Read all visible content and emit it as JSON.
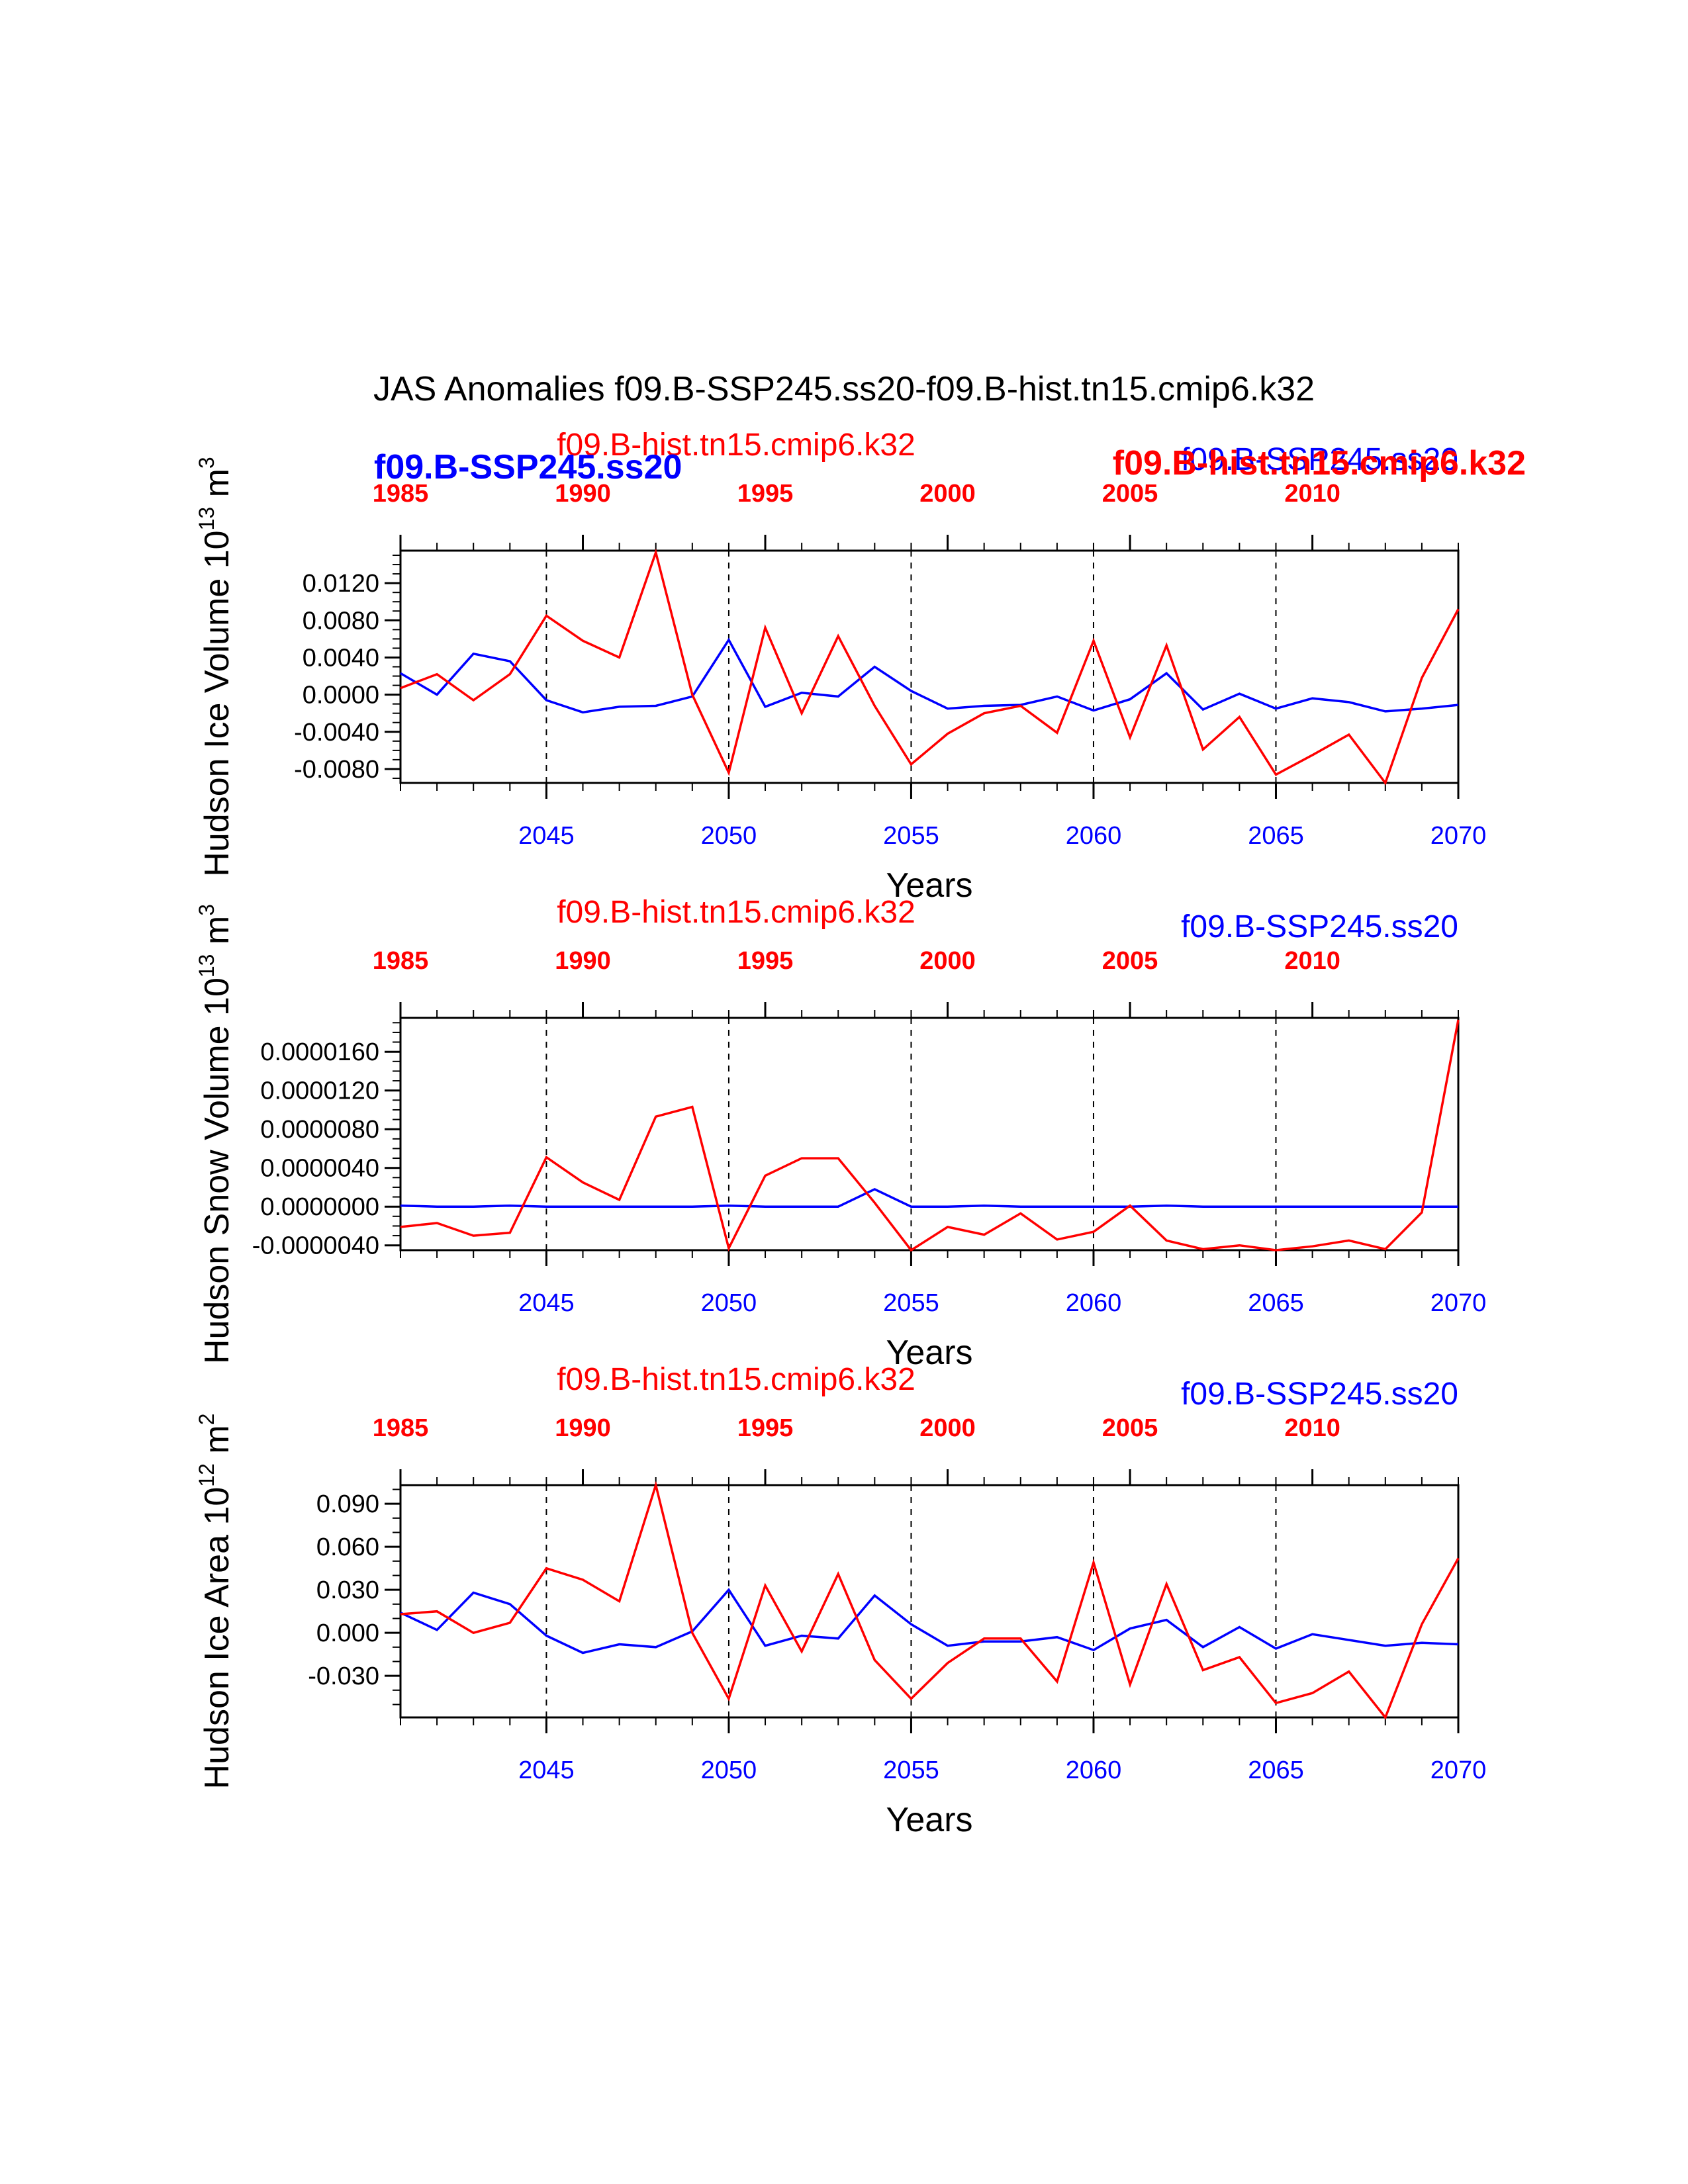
{
  "main_title": "JAS Anomalies f09.B-SSP245.ss20-f09.B-hist.tn15.cmip6.k32",
  "colors": {
    "ssp": "#0000ff",
    "hist": "#ff0000",
    "axis": "#000000"
  },
  "overlap_labels": {
    "hist_bold": "f09.B-hist.tn15.cmip6.k32",
    "ssp_bold": "f09.B-SSP245.ss20"
  },
  "chart_data": [
    {
      "type": "line",
      "ylabel": "Hudson Ice Volume 10",
      "ylabel_exp": "13",
      "ylabel_unit": "m",
      "ylabel_unit_exp": "3",
      "xlabel": "Years",
      "top_series_label": "f09.B-hist.tn15.cmip6.k32",
      "bottom_series_label": "f09.B-SSP245.ss20",
      "xlim": [
        2041,
        2070
      ],
      "ylim": [
        -0.0095,
        0.0155
      ],
      "yticks": [
        -0.008,
        -0.004,
        0.0,
        0.004,
        0.008,
        0.012
      ],
      "ytick_labels": [
        "-0.0080",
        "-0.0040",
        "0.0000",
        "0.0040",
        "0.0080",
        "0.0120"
      ],
      "yminor": 0.001,
      "x_bottom_ticks": [
        2045,
        2050,
        2055,
        2060,
        2065,
        2070
      ],
      "x_bottom_labels": [
        "2045",
        "2050",
        "2055",
        "2060",
        "2065",
        "2070"
      ],
      "x_top_ticks": [
        1985,
        1990,
        1995,
        2000,
        2005,
        2010
      ],
      "x_top_labels": [
        "1985",
        "1990",
        "1995",
        "2000",
        "2005",
        "2010"
      ],
      "x_top_offset": 56,
      "grid": "dashed vertical at 2045, 2050, 2055, 2060, 2065",
      "x": [
        2041,
        2042,
        2043,
        2044,
        2045,
        2046,
        2047,
        2048,
        2049,
        2050,
        2051,
        2052,
        2053,
        2054,
        2055,
        2056,
        2057,
        2058,
        2059,
        2060,
        2061,
        2062,
        2063,
        2064,
        2065,
        2066,
        2067,
        2068,
        2069,
        2070
      ],
      "series": [
        {
          "name": "f09.B-SSP245.ss20",
          "color": "#0000ff",
          "values": [
            0.0023,
            0.0,
            0.0044,
            0.0036,
            -0.0006,
            -0.0019,
            -0.0013,
            -0.0012,
            -0.0002,
            0.0059,
            -0.0013,
            0.0002,
            -0.0002,
            0.003,
            0.0004,
            -0.0015,
            -0.0012,
            -0.0011,
            -0.0002,
            -0.0017,
            -0.0005,
            0.0023,
            -0.0016,
            0.0001,
            -0.0015,
            -0.0004,
            -0.0008,
            -0.0018,
            -0.0015,
            -0.0011
          ]
        },
        {
          "name": "f09.B-hist.tn15.cmip6.k32",
          "color": "#ff0000",
          "values": [
            0.0007,
            0.0022,
            -0.0006,
            0.0022,
            0.0085,
            0.0058,
            0.004,
            0.0153,
            0.0,
            -0.0084,
            0.0072,
            -0.002,
            0.0063,
            -0.0012,
            -0.0075,
            -0.0042,
            -0.002,
            -0.0012,
            -0.0041,
            0.0058,
            -0.0046,
            0.0053,
            -0.0059,
            -0.0024,
            -0.0086,
            -0.0065,
            -0.0043,
            -0.0095,
            0.0018,
            0.0092
          ]
        }
      ]
    },
    {
      "type": "line",
      "ylabel": "Hudson Snow Volume 10",
      "ylabel_exp": "13",
      "ylabel_unit": "m",
      "ylabel_unit_exp": "3",
      "xlabel": "Years",
      "top_series_label": "f09.B-hist.tn15.cmip6.k32",
      "bottom_series_label": "f09.B-SSP245.ss20",
      "xlim": [
        2041,
        2070
      ],
      "ylim": [
        -4.5e-06,
        1.95e-05
      ],
      "yticks": [
        -4e-06,
        0.0,
        4e-06,
        8e-06,
        1.2e-05,
        1.6e-05
      ],
      "ytick_labels": [
        "-0.0000040",
        "0.0000000",
        "0.0000040",
        "0.0000080",
        "0.0000120",
        "0.0000160"
      ],
      "yminor": 1e-06,
      "x_bottom_ticks": [
        2045,
        2050,
        2055,
        2060,
        2065,
        2070
      ],
      "x_bottom_labels": [
        "2045",
        "2050",
        "2055",
        "2060",
        "2065",
        "2070"
      ],
      "x_top_ticks": [
        1985,
        1990,
        1995,
        2000,
        2005,
        2010
      ],
      "x_top_labels": [
        "1985",
        "1990",
        "1995",
        "2000",
        "2005",
        "2010"
      ],
      "x_top_offset": 56,
      "grid": "dashed vertical at 2045, 2050, 2055, 2060, 2065",
      "x": [
        2041,
        2042,
        2043,
        2044,
        2045,
        2046,
        2047,
        2048,
        2049,
        2050,
        2051,
        2052,
        2053,
        2054,
        2055,
        2056,
        2057,
        2058,
        2059,
        2060,
        2061,
        2062,
        2063,
        2064,
        2065,
        2066,
        2067,
        2068,
        2069,
        2070
      ],
      "series": [
        {
          "name": "f09.B-SSP245.ss20",
          "color": "#0000ff",
          "values": [
            1e-07,
            0.0,
            0.0,
            1e-07,
            0.0,
            0.0,
            0.0,
            0.0,
            0.0,
            1e-07,
            0.0,
            0.0,
            0.0,
            1.8e-06,
            0.0,
            0.0,
            1e-07,
            0.0,
            0.0,
            0.0,
            0.0,
            1e-07,
            0.0,
            0.0,
            0.0,
            0.0,
            0.0,
            0.0,
            0.0,
            0.0
          ]
        },
        {
          "name": "f09.B-hist.tn15.cmip6.k32",
          "color": "#ff0000",
          "values": [
            -2.1e-06,
            -1.7e-06,
            -3e-06,
            -2.7e-06,
            5.1e-06,
            2.5e-06,
            7e-07,
            9.3e-06,
            1.03e-05,
            -4.3e-06,
            3.2e-06,
            5e-06,
            5e-06,
            4e-07,
            -4.5e-06,
            -2.1e-06,
            -2.9e-06,
            -7e-07,
            -3.4e-06,
            -2.6e-06,
            1e-07,
            -3.5e-06,
            -4.4e-06,
            -4e-06,
            -4.5e-06,
            -4.1e-06,
            -3.5e-06,
            -4.4e-06,
            -6e-07,
            1.93e-05
          ]
        }
      ]
    },
    {
      "type": "line",
      "ylabel": "Hudson Ice Area 10",
      "ylabel_exp": "12",
      "ylabel_unit": "m",
      "ylabel_unit_exp": "2",
      "xlabel": "Years",
      "top_series_label": "f09.B-hist.tn15.cmip6.k32",
      "bottom_series_label": "f09.B-SSP245.ss20",
      "xlim": [
        2041,
        2070
      ],
      "ylim": [
        -0.059,
        0.103
      ],
      "yticks": [
        -0.03,
        0.0,
        0.03,
        0.06,
        0.09
      ],
      "ytick_labels": [
        "-0.030",
        "0.000",
        "0.030",
        "0.060",
        "0.090"
      ],
      "yminor": 0.01,
      "x_bottom_ticks": [
        2045,
        2050,
        2055,
        2060,
        2065,
        2070
      ],
      "x_bottom_labels": [
        "2045",
        "2050",
        "2055",
        "2060",
        "2065",
        "2070"
      ],
      "x_top_ticks": [
        1985,
        1990,
        1995,
        2000,
        2005,
        2010
      ],
      "x_top_labels": [
        "1985",
        "1990",
        "1995",
        "2000",
        "2005",
        "2010"
      ],
      "x_top_offset": 56,
      "grid": "dashed vertical at 2045, 2050, 2055, 2060, 2065",
      "x": [
        2041,
        2042,
        2043,
        2044,
        2045,
        2046,
        2047,
        2048,
        2049,
        2050,
        2051,
        2052,
        2053,
        2054,
        2055,
        2056,
        2057,
        2058,
        2059,
        2060,
        2061,
        2062,
        2063,
        2064,
        2065,
        2066,
        2067,
        2068,
        2069,
        2070
      ],
      "series": [
        {
          "name": "f09.B-SSP245.ss20",
          "color": "#0000ff",
          "values": [
            0.014,
            0.002,
            0.028,
            0.02,
            -0.002,
            -0.014,
            -0.008,
            -0.01,
            0.001,
            0.03,
            -0.009,
            -0.002,
            -0.004,
            0.026,
            0.006,
            -0.009,
            -0.006,
            -0.006,
            -0.003,
            -0.012,
            0.003,
            0.009,
            -0.01,
            0.004,
            -0.011,
            -0.001,
            -0.005,
            -0.009,
            -0.007,
            -0.008
          ]
        },
        {
          "name": "f09.B-hist.tn15.cmip6.k32",
          "color": "#ff0000",
          "values": [
            0.013,
            0.015,
            0.0,
            0.007,
            0.045,
            0.037,
            0.022,
            0.103,
            0.0,
            -0.046,
            0.033,
            -0.013,
            0.041,
            -0.019,
            -0.046,
            -0.021,
            -0.004,
            -0.004,
            -0.034,
            0.049,
            -0.036,
            0.034,
            -0.026,
            -0.017,
            -0.049,
            -0.042,
            -0.027,
            -0.059,
            0.006,
            0.052
          ]
        }
      ]
    }
  ]
}
